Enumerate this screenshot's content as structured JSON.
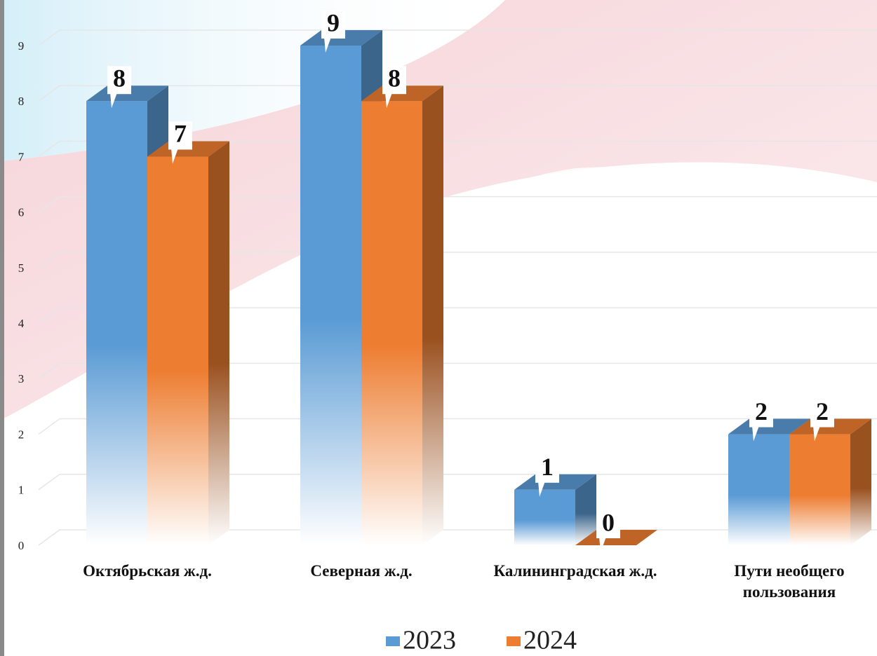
{
  "chart_data": {
    "type": "bar3d",
    "categories": [
      "Октябрьская ж.д.",
      "Северная ж.д.",
      "Калининградская ж.д.",
      "Пути необщего пользования"
    ],
    "series": [
      {
        "name": "2023",
        "color": "#5b9bd5",
        "values": [
          8,
          9,
          1,
          2
        ]
      },
      {
        "name": "2024",
        "color": "#ed7d31",
        "values": [
          7,
          8,
          0,
          2
        ]
      }
    ],
    "ylim": [
      0,
      9
    ],
    "yticks": [
      0,
      1,
      2,
      3,
      4,
      5,
      6,
      7,
      8,
      9
    ],
    "grid": true
  }
}
